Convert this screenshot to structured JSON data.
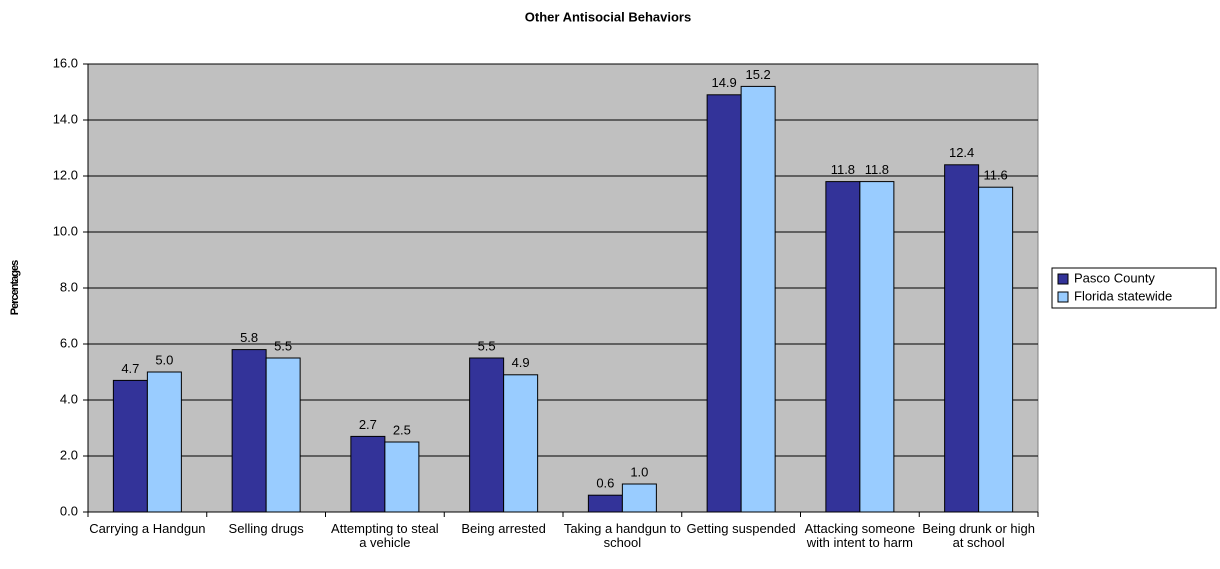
{
  "chart_data": {
    "type": "bar",
    "title": "Other Antisocial Behaviors",
    "y_label": "Percentages",
    "categories": [
      "Carrying a Handgun",
      "Selling drugs",
      "Attempting to steal a vehicle",
      "Being arrested",
      "Taking a handgun to school",
      "Getting suspended",
      "Attacking someone with intent to harm",
      "Being drunk or high at school"
    ],
    "series": [
      {
        "name": "Pasco County",
        "color": "#333399",
        "values": [
          4.7,
          5.8,
          2.7,
          5.5,
          0.6,
          14.9,
          11.8,
          12.4
        ],
        "value_labels": [
          "4.7",
          "5.8",
          "2.7",
          "5.5",
          "0.6",
          "14.9",
          "11.8",
          "12.4"
        ]
      },
      {
        "name": "Florida statewide",
        "color": "#99ccff",
        "values": [
          5.0,
          5.5,
          2.5,
          4.9,
          1.0,
          15.2,
          11.8,
          11.6
        ],
        "value_labels": [
          "5.0",
          "5.5",
          "2.5",
          "4.9",
          "1.0",
          "15.2",
          "11.8",
          "11.6"
        ]
      }
    ],
    "ylim": [
      0,
      16
    ],
    "yticks": [
      {
        "value": 0,
        "label": "0.0"
      },
      {
        "value": 2,
        "label": "2.0"
      },
      {
        "value": 4,
        "label": "4.0"
      },
      {
        "value": 6,
        "label": "6.0"
      },
      {
        "value": 8,
        "label": "8.0"
      },
      {
        "value": 10,
        "label": "10.0"
      },
      {
        "value": 12,
        "label": "12.0"
      },
      {
        "value": 14,
        "label": "14.0"
      },
      {
        "value": 16,
        "label": "16.0"
      }
    ],
    "grid": true,
    "legend": "right"
  }
}
